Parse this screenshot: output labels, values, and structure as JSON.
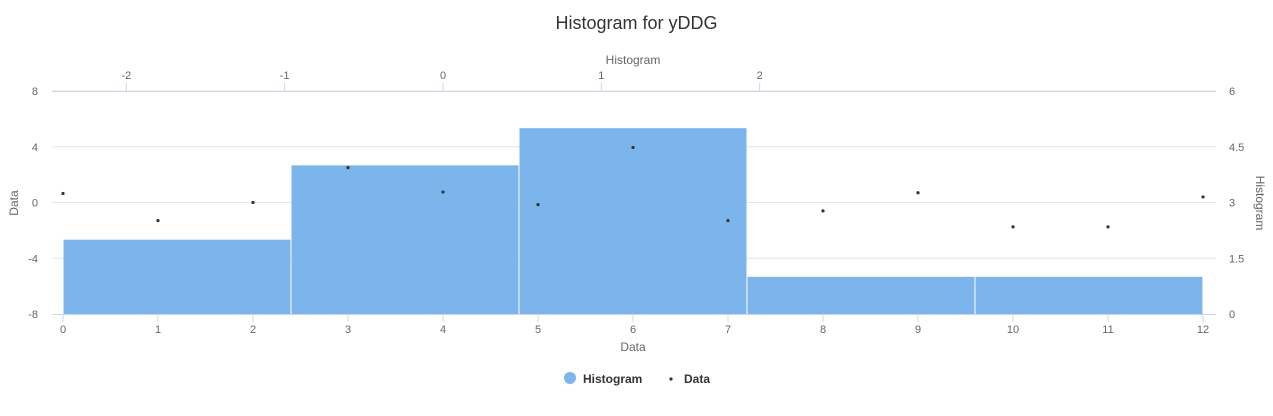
{
  "chart_data": {
    "type": "histogram+scatter",
    "title": "Histogram for yDDG",
    "x_bottom": {
      "title": "Data",
      "min": 0,
      "max": 12,
      "ticks": [
        0,
        1,
        2,
        3,
        4,
        5,
        6,
        7,
        8,
        9,
        10,
        11,
        12
      ]
    },
    "x_top": {
      "title": "Histogram",
      "min": -2.4,
      "max": 4.8,
      "ticks": [
        -2,
        -1,
        0,
        1,
        2
      ]
    },
    "y_left": {
      "title": "Data",
      "min": -8,
      "max": 8,
      "ticks": [
        -8,
        -4,
        0,
        4,
        8
      ]
    },
    "y_right": {
      "title": "Histogram",
      "min": 0,
      "max": 6,
      "ticks": [
        "0",
        "1.5",
        "3",
        "4.5",
        "6"
      ],
      "tick_values": [
        0,
        1.5,
        3,
        4.5,
        6
      ]
    },
    "grid": true,
    "legend_position": "bottom-center",
    "series": [
      {
        "name": "Histogram",
        "type": "column",
        "color": "#7cb5ec",
        "bins": [
          {
            "x1": 0,
            "x2": 2.4,
            "count": 2
          },
          {
            "x1": 2.4,
            "x2": 4.8,
            "count": 4
          },
          {
            "x1": 4.8,
            "x2": 7.2,
            "count": 5
          },
          {
            "x1": 7.2,
            "x2": 9.6,
            "count": 1
          },
          {
            "x1": 9.6,
            "x2": 12,
            "count": 1
          }
        ]
      },
      {
        "name": "Data",
        "type": "scatter",
        "color": "#333333",
        "x": [
          0,
          1,
          2,
          3,
          4,
          5,
          6,
          7,
          8,
          9,
          10,
          11,
          12
        ],
        "y": [
          0.65,
          -1.3,
          0.0,
          2.5,
          0.75,
          -0.15,
          3.95,
          -1.3,
          -0.6,
          0.7,
          -1.75,
          -1.75,
          0.4
        ]
      }
    ]
  }
}
